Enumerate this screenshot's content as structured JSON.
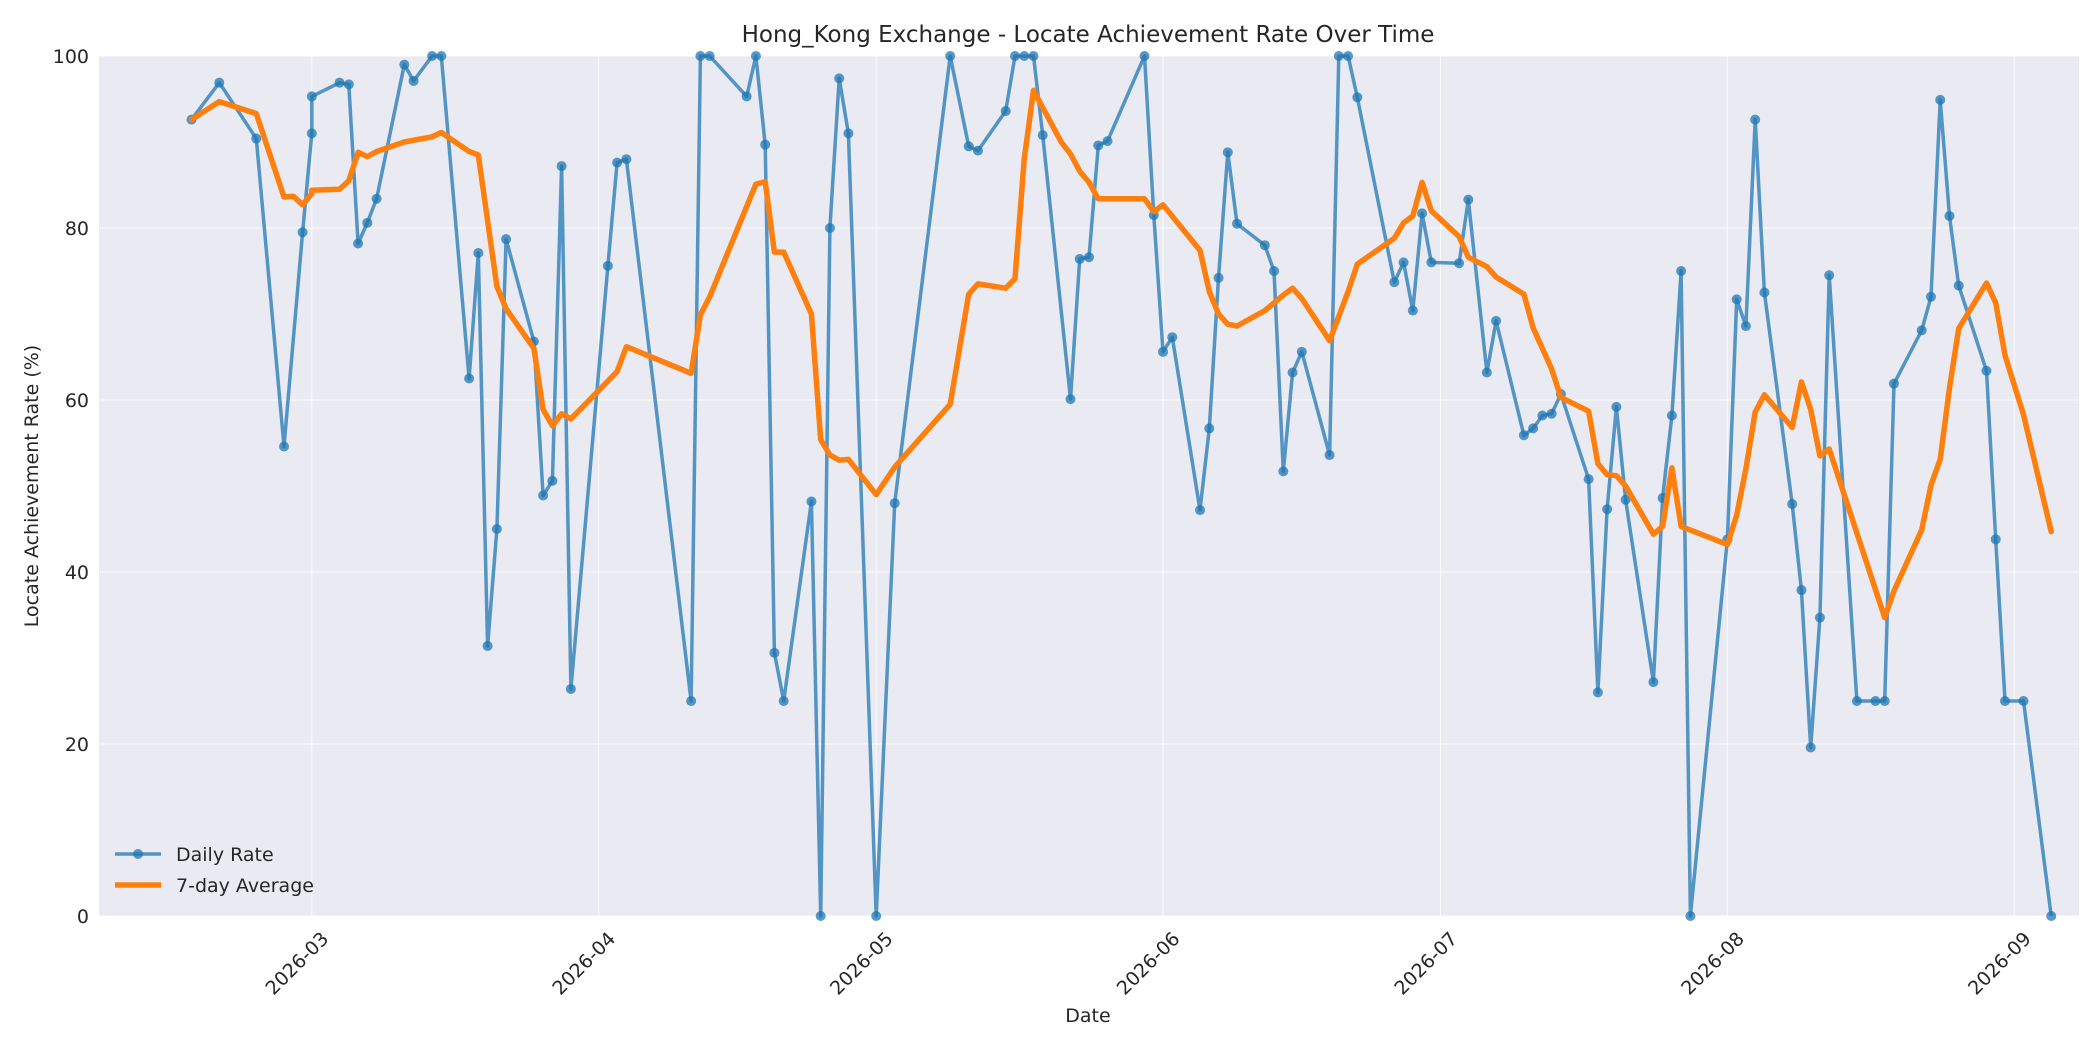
{
  "chart_data": {
    "type": "line",
    "title": "Hong_Kong Exchange - Locate Achievement Rate Over Time",
    "xlabel": "Date",
    "ylabel": "Locate Achievement Rate (%)",
    "ylim": [
      0,
      100
    ],
    "xlim": [
      "2026-02-06",
      "2026-09-08"
    ],
    "x_ticks": [
      "2026-03-01",
      "2026-04-01",
      "2026-05-01",
      "2026-06-01",
      "2026-07-01",
      "2026-08-01",
      "2026-09-01"
    ],
    "x_tick_labels": [
      "2026-03",
      "2026-04",
      "2026-05",
      "2026-06",
      "2026-07",
      "2026-08",
      "2026-09"
    ],
    "y_ticks": [
      0,
      20,
      40,
      60,
      80,
      100
    ],
    "y_tick_labels": [
      "0",
      "20",
      "40",
      "60",
      "80",
      "100"
    ],
    "grid": true,
    "legend_position": "lower-left",
    "series": [
      {
        "name": "Daily Rate",
        "color": "#1f77b4",
        "marker": "circle",
        "points": [
          [
            "2026-02-16",
            92.6
          ],
          [
            "2026-02-19",
            96.9
          ],
          [
            "2026-02-23",
            90.4
          ],
          [
            "2026-02-26",
            54.6
          ],
          [
            "2026-02-28",
            79.5
          ],
          [
            "2026-02-29",
            91.0
          ],
          [
            "2026-03-01",
            95.3
          ],
          [
            "2026-03-04",
            96.9
          ],
          [
            "2026-03-05",
            96.7
          ],
          [
            "2026-03-06",
            78.2
          ],
          [
            "2026-03-07",
            80.6
          ],
          [
            "2026-03-08",
            83.4
          ],
          [
            "2026-03-11",
            99.0
          ],
          [
            "2026-03-12",
            97.1
          ],
          [
            "2026-03-14",
            100.0
          ],
          [
            "2026-03-15",
            100.0
          ],
          [
            "2026-03-18",
            62.5
          ],
          [
            "2026-03-19",
            77.1
          ],
          [
            "2026-03-20",
            31.4
          ],
          [
            "2026-03-21",
            45.0
          ],
          [
            "2026-03-22",
            78.7
          ],
          [
            "2026-03-25",
            66.8
          ],
          [
            "2026-03-26",
            48.9
          ],
          [
            "2026-03-27",
            50.6
          ],
          [
            "2026-03-28",
            87.2
          ],
          [
            "2026-03-29",
            26.4
          ],
          [
            "2026-04-02",
            75.6
          ],
          [
            "2026-04-03",
            87.6
          ],
          [
            "2026-04-04",
            88.0
          ],
          [
            "2026-04-11",
            25.0
          ],
          [
            "2026-04-12",
            100.0
          ],
          [
            "2026-04-13",
            100.0
          ],
          [
            "2026-04-17",
            95.3
          ],
          [
            "2026-04-18",
            100.0
          ],
          [
            "2026-04-19",
            89.7
          ],
          [
            "2026-04-20",
            30.6
          ],
          [
            "2026-04-21",
            25.0
          ],
          [
            "2026-04-24",
            48.2
          ],
          [
            "2026-04-25",
            0.0
          ],
          [
            "2026-04-26",
            80.0
          ],
          [
            "2026-04-27",
            97.4
          ],
          [
            "2026-04-28",
            91.0
          ],
          [
            "2026-05-01",
            0.0
          ],
          [
            "2026-05-03",
            48.0
          ],
          [
            "2026-05-09",
            100.0
          ],
          [
            "2026-05-11",
            89.5
          ],
          [
            "2026-05-12",
            89.0
          ],
          [
            "2026-05-15",
            93.6
          ],
          [
            "2026-05-16",
            100.0
          ],
          [
            "2026-05-17",
            100.0
          ],
          [
            "2026-05-18",
            100.0
          ],
          [
            "2026-05-19",
            90.8
          ],
          [
            "2026-05-22",
            60.1
          ],
          [
            "2026-05-23",
            76.4
          ],
          [
            "2026-05-24",
            76.6
          ],
          [
            "2026-05-25",
            89.6
          ],
          [
            "2026-05-26",
            90.1
          ],
          [
            "2026-05-30",
            100.0
          ],
          [
            "2026-05-31",
            81.5
          ],
          [
            "2026-06-01",
            65.6
          ],
          [
            "2026-06-02",
            67.3
          ],
          [
            "2026-06-05",
            47.2
          ],
          [
            "2026-06-06",
            56.7
          ],
          [
            "2026-06-07",
            74.2
          ],
          [
            "2026-06-08",
            88.8
          ],
          [
            "2026-06-09",
            80.5
          ],
          [
            "2026-06-12",
            78.0
          ],
          [
            "2026-06-13",
            75.0
          ],
          [
            "2026-06-14",
            51.7
          ],
          [
            "2026-06-15",
            63.2
          ],
          [
            "2026-06-16",
            65.6
          ],
          [
            "2026-06-19",
            53.6
          ],
          [
            "2026-06-20",
            100.0
          ],
          [
            "2026-06-21",
            100.0
          ],
          [
            "2026-06-22",
            95.2
          ],
          [
            "2026-06-26",
            73.7
          ],
          [
            "2026-06-27",
            76.0
          ],
          [
            "2026-06-28",
            70.4
          ],
          [
            "2026-06-29",
            81.7
          ],
          [
            "2026-06-30",
            76.0
          ],
          [
            "2026-07-03",
            75.9
          ],
          [
            "2026-07-04",
            83.3
          ],
          [
            "2026-07-06",
            63.2
          ],
          [
            "2026-07-07",
            69.2
          ],
          [
            "2026-07-10",
            55.9
          ],
          [
            "2026-07-11",
            56.7
          ],
          [
            "2026-07-12",
            58.2
          ],
          [
            "2026-07-13",
            58.4
          ],
          [
            "2026-07-14",
            60.7
          ],
          [
            "2026-07-17",
            50.8
          ],
          [
            "2026-07-18",
            26.0
          ],
          [
            "2026-07-19",
            47.3
          ],
          [
            "2026-07-20",
            59.2
          ],
          [
            "2026-07-21",
            48.4
          ],
          [
            "2026-07-24",
            27.2
          ],
          [
            "2026-07-25",
            48.6
          ],
          [
            "2026-07-26",
            58.2
          ],
          [
            "2026-07-27",
            75.0
          ],
          [
            "2026-07-28",
            0.0
          ],
          [
            "2026-08-01",
            43.8
          ],
          [
            "2026-08-02",
            71.7
          ],
          [
            "2026-08-03",
            68.6
          ],
          [
            "2026-08-04",
            92.6
          ],
          [
            "2026-08-05",
            72.5
          ],
          [
            "2026-08-08",
            47.9
          ],
          [
            "2026-08-09",
            37.9
          ],
          [
            "2026-08-10",
            19.6
          ],
          [
            "2026-08-11",
            34.7
          ],
          [
            "2026-08-12",
            74.5
          ],
          [
            "2026-08-15",
            25.0
          ],
          [
            "2026-08-17",
            25.0
          ],
          [
            "2026-08-18",
            25.0
          ],
          [
            "2026-08-19",
            61.9
          ],
          [
            "2026-08-22",
            68.1
          ],
          [
            "2026-08-23",
            72.0
          ],
          [
            "2026-08-24",
            94.9
          ],
          [
            "2026-08-25",
            81.4
          ],
          [
            "2026-08-26",
            73.3
          ],
          [
            "2026-08-29",
            63.4
          ],
          [
            "2026-08-30",
            43.8
          ],
          [
            "2026-08-31",
            25.0
          ],
          [
            "2026-09-02",
            25.0
          ],
          [
            "2026-09-05",
            0.0
          ]
        ]
      },
      {
        "name": "7-day Average",
        "color": "#ff7f0e",
        "marker": "none",
        "points": [
          [
            "2026-02-16",
            92.6
          ],
          [
            "2026-02-19",
            94.7
          ],
          [
            "2026-02-23",
            93.3
          ],
          [
            "2026-02-26",
            83.6
          ],
          [
            "2026-02-27",
            83.7
          ],
          [
            "2026-02-28",
            82.7
          ],
          [
            "2026-02-29",
            84.0
          ],
          [
            "2026-03-01",
            84.4
          ],
          [
            "2026-03-04",
            84.5
          ],
          [
            "2026-03-05",
            85.5
          ],
          [
            "2026-03-06",
            88.8
          ],
          [
            "2026-03-07",
            88.3
          ],
          [
            "2026-03-08",
            88.9
          ],
          [
            "2026-03-11",
            90.0
          ],
          [
            "2026-03-14",
            90.6
          ],
          [
            "2026-03-15",
            91.1
          ],
          [
            "2026-03-18",
            88.9
          ],
          [
            "2026-03-19",
            88.5
          ],
          [
            "2026-03-21",
            73.2
          ],
          [
            "2026-03-22",
            70.6
          ],
          [
            "2026-03-25",
            66.0
          ],
          [
            "2026-03-26",
            58.9
          ],
          [
            "2026-03-27",
            57.0
          ],
          [
            "2026-03-28",
            58.4
          ],
          [
            "2026-03-29",
            57.8
          ],
          [
            "2026-04-03",
            63.3
          ],
          [
            "2026-04-04",
            66.2
          ],
          [
            "2026-04-11",
            63.1
          ],
          [
            "2026-04-12",
            69.9
          ],
          [
            "2026-04-13",
            72.0
          ],
          [
            "2026-04-18",
            85.1
          ],
          [
            "2026-04-19",
            85.4
          ],
          [
            "2026-04-20",
            77.2
          ],
          [
            "2026-04-21",
            77.2
          ],
          [
            "2026-04-24",
            70.0
          ],
          [
            "2026-04-25",
            55.4
          ],
          [
            "2026-04-26",
            53.6
          ],
          [
            "2026-04-27",
            53.0
          ],
          [
            "2026-04-28",
            53.1
          ],
          [
            "2026-05-01",
            49.0
          ],
          [
            "2026-05-03",
            52.2
          ],
          [
            "2026-05-09",
            59.5
          ],
          [
            "2026-05-11",
            72.3
          ],
          [
            "2026-05-12",
            73.5
          ],
          [
            "2026-05-15",
            73.0
          ],
          [
            "2026-05-16",
            74.1
          ],
          [
            "2026-05-17",
            88.0
          ],
          [
            "2026-05-18",
            96.0
          ],
          [
            "2026-05-21",
            90.0
          ],
          [
            "2026-05-22",
            88.6
          ],
          [
            "2026-05-23",
            86.6
          ],
          [
            "2026-05-24",
            85.3
          ],
          [
            "2026-05-25",
            83.4
          ],
          [
            "2026-05-26",
            83.4
          ],
          [
            "2026-05-30",
            83.4
          ],
          [
            "2026-05-31",
            81.9
          ],
          [
            "2026-06-01",
            82.7
          ],
          [
            "2026-06-05",
            77.4
          ],
          [
            "2026-06-06",
            72.6
          ],
          [
            "2026-06-07",
            70.0
          ],
          [
            "2026-06-08",
            68.8
          ],
          [
            "2026-06-09",
            68.6
          ],
          [
            "2026-06-12",
            70.4
          ],
          [
            "2026-06-14",
            72.2
          ],
          [
            "2026-06-15",
            73.0
          ],
          [
            "2026-06-16",
            71.8
          ],
          [
            "2026-06-19",
            66.9
          ],
          [
            "2026-06-21",
            72.6
          ],
          [
            "2026-06-22",
            75.8
          ],
          [
            "2026-06-26",
            78.8
          ],
          [
            "2026-06-27",
            80.6
          ],
          [
            "2026-06-28",
            81.4
          ],
          [
            "2026-06-29",
            85.3
          ],
          [
            "2026-06-30",
            82.0
          ],
          [
            "2026-07-03",
            79.0
          ],
          [
            "2026-07-04",
            76.6
          ],
          [
            "2026-07-06",
            75.5
          ],
          [
            "2026-07-07",
            74.3
          ],
          [
            "2026-07-10",
            72.3
          ],
          [
            "2026-07-11",
            68.4
          ],
          [
            "2026-07-13",
            63.6
          ],
          [
            "2026-07-14",
            60.3
          ],
          [
            "2026-07-17",
            58.7
          ],
          [
            "2026-07-18",
            52.6
          ],
          [
            "2026-07-19",
            51.3
          ],
          [
            "2026-07-20",
            51.2
          ],
          [
            "2026-07-21",
            50.0
          ],
          [
            "2026-07-24",
            44.4
          ],
          [
            "2026-07-25",
            45.3
          ],
          [
            "2026-07-26",
            52.1
          ],
          [
            "2026-07-27",
            45.3
          ],
          [
            "2026-08-01",
            43.2
          ],
          [
            "2026-08-02",
            46.6
          ],
          [
            "2026-08-03",
            52.0
          ],
          [
            "2026-08-04",
            58.6
          ],
          [
            "2026-08-05",
            60.6
          ],
          [
            "2026-08-08",
            56.8
          ],
          [
            "2026-08-09",
            62.1
          ],
          [
            "2026-08-10",
            58.9
          ],
          [
            "2026-08-11",
            53.5
          ],
          [
            "2026-08-12",
            54.3
          ],
          [
            "2026-08-18",
            34.7
          ],
          [
            "2026-08-19",
            37.8
          ],
          [
            "2026-08-22",
            44.9
          ],
          [
            "2026-08-23",
            50.1
          ],
          [
            "2026-08-24",
            53.1
          ],
          [
            "2026-08-25",
            61.4
          ],
          [
            "2026-08-26",
            68.3
          ],
          [
            "2026-08-29",
            73.6
          ],
          [
            "2026-08-30",
            71.3
          ],
          [
            "2026-08-31",
            65.2
          ],
          [
            "2026-09-02",
            58.3
          ],
          [
            "2026-09-05",
            44.7
          ]
        ]
      }
    ]
  }
}
